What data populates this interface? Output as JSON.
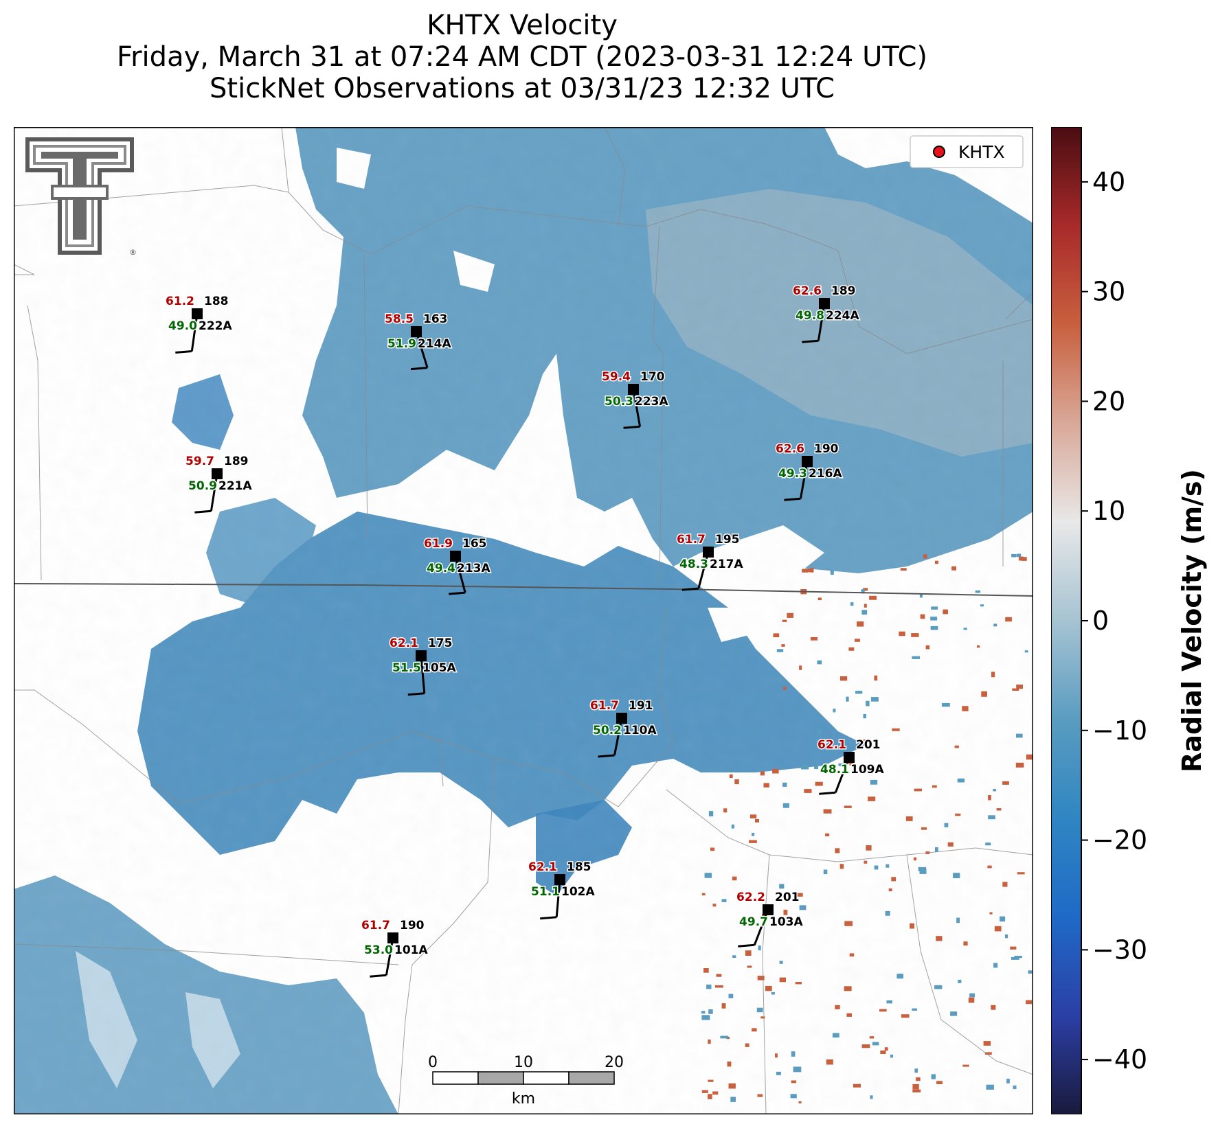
{
  "title": {
    "line1": "KHTX Velocity",
    "line2": "Friday, March 31 at 07:24 AM CDT (2023-03-31 12:24 UTC)",
    "line3": "StickNet Observations at 03/31/23 12:32 UTC"
  },
  "legend": {
    "label": "KHTX",
    "marker_color": "#e8141b"
  },
  "colorbar": {
    "label": "Radial Velocity (m/s)",
    "range": [
      -45,
      45
    ],
    "ticks": [
      "40",
      "30",
      "20",
      "10",
      "0",
      "−10",
      "−20",
      "−30",
      "−40"
    ],
    "tick_values": [
      40,
      30,
      20,
      10,
      0,
      -10,
      -20,
      -30,
      -40
    ],
    "colors": [
      "#1a1a3c",
      "#2b3fa6",
      "#1f6ac6",
      "#2f86c2",
      "#5a9cc0",
      "#a6c3d2",
      "#e8e8e8",
      "#d9a898",
      "#c8603e",
      "#a82a2a",
      "#4a0d12"
    ]
  },
  "scale_bar": {
    "ticks": [
      "0",
      "10",
      "20"
    ],
    "unit": "km"
  },
  "logo": {
    "name": "Texas Tech double-T logo",
    "mark": "®"
  },
  "colors": {
    "gust": "#b00000",
    "speed": "#006600",
    "station": "#000000",
    "velocity_blue": "#5a9cc0",
    "velocity_red": "#c8603e"
  },
  "stations": [
    {
      "id": "222A",
      "gust": "61.2",
      "speed": "49.0",
      "dir": "188"
    },
    {
      "id": "214A",
      "gust": "58.5",
      "speed": "51.9",
      "dir": "163"
    },
    {
      "id": "224A",
      "gust": "62.6",
      "speed": "49.8",
      "dir": "189"
    },
    {
      "id": "223A",
      "gust": "59.4",
      "speed": "50.3",
      "dir": "170"
    },
    {
      "id": "221A",
      "gust": "59.7",
      "speed": "50.9",
      "dir": "189"
    },
    {
      "id": "216A",
      "gust": "62.6",
      "speed": "49.3",
      "dir": "190"
    },
    {
      "id": "213A",
      "gust": "61.9",
      "speed": "49.4",
      "dir": "165"
    },
    {
      "id": "217A",
      "gust": "61.7",
      "speed": "48.3",
      "dir": "195"
    },
    {
      "id": "105A",
      "gust": "62.1",
      "speed": "51.5",
      "dir": "175"
    },
    {
      "id": "110A",
      "gust": "61.7",
      "speed": "50.2",
      "dir": "191"
    },
    {
      "id": "109A",
      "gust": "62.1",
      "speed": "48.1",
      "dir": "201"
    },
    {
      "id": "102A",
      "gust": "62.1",
      "speed": "51.1",
      "dir": "185"
    },
    {
      "id": "103A",
      "gust": "62.2",
      "speed": "49.7",
      "dir": "201"
    },
    {
      "id": "101A",
      "gust": "61.7",
      "speed": "53.0",
      "dir": "190"
    }
  ]
}
